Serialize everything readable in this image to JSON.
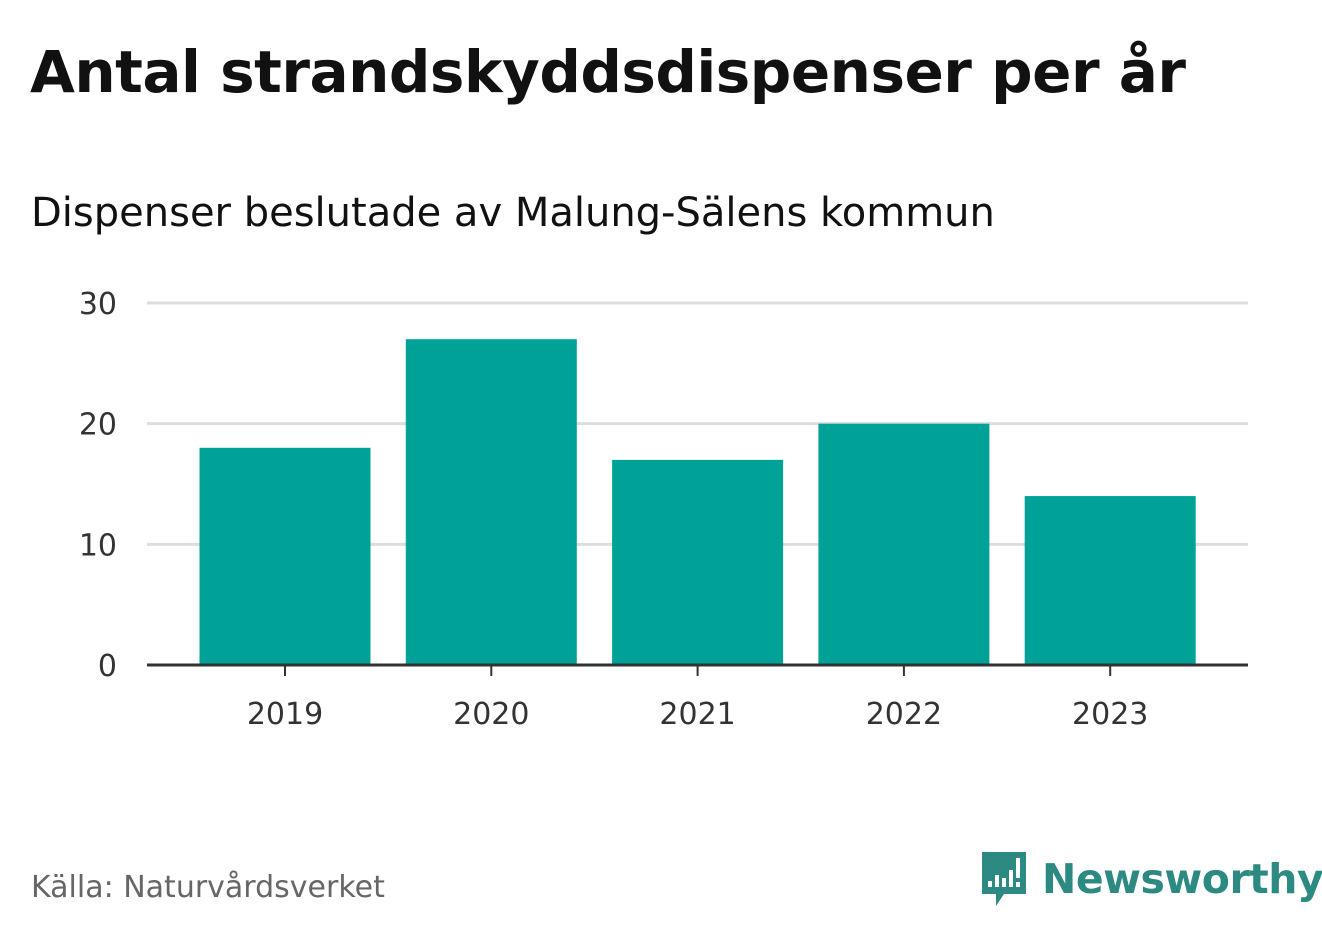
{
  "header": {
    "title": "Antal strandskyddsdispenser per år",
    "subtitle": "Dispenser beslutade av Malung-Sälens kommun"
  },
  "footer": {
    "source": "Källa: Naturvårdsverket",
    "brand": "Newsworthy"
  },
  "colors": {
    "bar": "#00a298",
    "grid": "#dddddd",
    "axis": "#333333",
    "brand": "#2d8a82"
  },
  "chart_data": {
    "type": "bar",
    "title": "Antal strandskyddsdispenser per år",
    "subtitle": "Dispenser beslutade av Malung-Sälens kommun",
    "xlabel": "",
    "ylabel": "",
    "categories": [
      "2019",
      "2020",
      "2021",
      "2022",
      "2023"
    ],
    "values": [
      18,
      27,
      17,
      20,
      14
    ],
    "ylim": [
      0,
      30
    ],
    "yticks": [
      0,
      10,
      20,
      30
    ],
    "grid": true
  }
}
